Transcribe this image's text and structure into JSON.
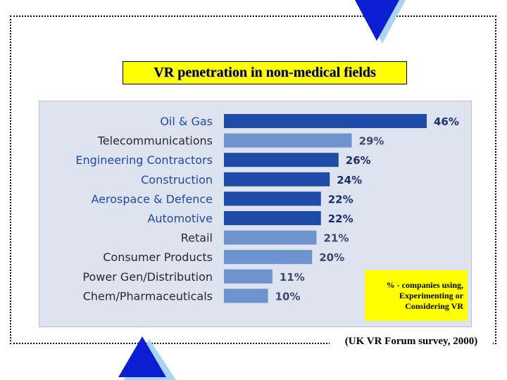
{
  "colors": {
    "dark_bar": "#1e4ba8",
    "light_bar": "#6f93cf",
    "label_dark": "#1e4ba8",
    "label_light": "#2a2a2a",
    "panel": "#dde3ef",
    "title_bg": "#ffff00",
    "triangle": "#0b1fd0",
    "triangle_shadow": "#a9d4f5"
  },
  "title": "VR penetration in non-medical fields",
  "note": "% - companies using, Experimenting or Considering VR",
  "source": "(UK VR Forum survey, 2000)",
  "chart_data": {
    "type": "bar",
    "orientation": "horizontal",
    "title": "VR penetration in non-medical fields",
    "categories": [
      "Oil & Gas",
      "Telecommunications",
      "Engineering Contractors",
      "Construction",
      "Aerospace & Defence",
      "Automotive",
      "Retail",
      "Consumer Products",
      "Power Gen/Distribution",
      "Chem/Pharmaceuticals"
    ],
    "values": [
      46,
      29,
      26,
      24,
      22,
      22,
      21,
      20,
      11,
      10
    ],
    "value_labels": [
      "46%",
      "29%",
      "26%",
      "24%",
      "22%",
      "22%",
      "21%",
      "20%",
      "11%",
      "10%"
    ],
    "bar_tones": [
      "dark",
      "light",
      "dark",
      "dark",
      "dark",
      "dark",
      "light",
      "light",
      "light",
      "light"
    ],
    "label_tones": [
      "dark",
      "light",
      "dark",
      "dark",
      "dark",
      "dark",
      "light",
      "light",
      "light",
      "light"
    ],
    "unit": "%",
    "grid": false,
    "legend": "none"
  }
}
